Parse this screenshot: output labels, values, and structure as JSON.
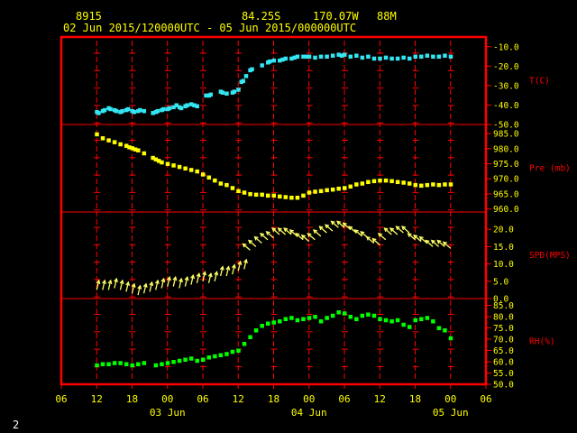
{
  "header": {
    "station": "8915",
    "latitude": "84.25S",
    "longitude": "170.07W",
    "elevation": "88M",
    "time_range": "02 Jun 2015/120000UTC - 05 Jun 2015/000000UTC"
  },
  "footer": {
    "page_number": "2"
  },
  "colors": {
    "frame": "#ff0000",
    "tick_labels": "#ffff00",
    "axis_titles": "#ff0000",
    "temperature": "#33e6f2",
    "pressure": "#ffff00",
    "wind": "#ffff66",
    "humidity": "#00ff00"
  },
  "chart_data": {
    "type": "scatter",
    "x_axis": {
      "unit": "hour (UTC)",
      "range": [
        6,
        78
      ],
      "tick_values": [
        6,
        12,
        18,
        24,
        30,
        36,
        42,
        48,
        54,
        60,
        66,
        72,
        78
      ],
      "tick_labels": [
        "06",
        "12",
        "18",
        "00",
        "06",
        "12",
        "18",
        "00",
        "06",
        "12",
        "18",
        "00",
        "06"
      ],
      "date_labels": [
        {
          "x": 24,
          "label": "03 Jun"
        },
        {
          "x": 48,
          "label": "04 Jun"
        },
        {
          "x": 72,
          "label": "05 Jun"
        }
      ]
    },
    "panels": [
      {
        "id": "temperature",
        "ylabel": "T(C)",
        "ylim": [
          -50,
          -5
        ],
        "tick_values": [
          -10,
          -20,
          -30,
          -40,
          -50
        ],
        "tick_labels": [
          "-10.0",
          "-20.0",
          "-30.0",
          "-40.0",
          "-50.0"
        ],
        "series": [
          {
            "x": [
              12.0,
              12.3,
              13.0,
              13.3,
              14.0,
              14.3,
              15.0,
              15.3,
              16.0,
              16.3,
              17.0,
              17.3,
              18.0,
              18.3,
              19.0,
              19.3,
              20.0,
              21.5,
              22.0,
              22.3,
              23.0,
              23.3,
              24.0,
              24.3,
              25.0,
              25.5,
              26.0,
              26.3,
              27.0,
              27.3,
              28.0,
              28.5,
              29.0,
              30.5,
              31.0,
              31.3,
              33.0,
              33.3,
              34.0,
              35.0,
              35.3,
              36.0,
              36.5,
              36.8,
              37.3,
              38.0,
              38.3,
              40.0,
              41.0,
              41.3,
              42.0,
              43.0,
              43.5,
              44.0,
              45.0,
              45.5,
              46.0,
              47.0,
              47.5,
              48.0,
              49.0,
              50.0,
              51.0,
              52.0,
              53.0,
              53.5,
              54.0,
              55.0,
              56.0,
              57.0,
              58.0,
              59.0,
              60.0,
              61.0,
              62.0,
              63.0,
              64.0,
              65.0,
              66.0,
              67.0,
              68.0,
              69.0,
              70.0,
              71.0,
              72.0
            ],
            "y": [
              -43.5,
              -44.0,
              -43.0,
              -42.5,
              -41.5,
              -42.0,
              -42.5,
              -43.0,
              -43.5,
              -43.0,
              -42.5,
              -42.0,
              -43.0,
              -43.5,
              -43.0,
              -42.5,
              -43.0,
              -44.0,
              -43.5,
              -43.0,
              -42.5,
              -42.0,
              -42.0,
              -41.5,
              -41.0,
              -40.0,
              -41.0,
              -41.5,
              -40.5,
              -40.0,
              -39.5,
              -40.0,
              -40.5,
              -35.0,
              -35.0,
              -34.5,
              -33.0,
              -33.5,
              -34.0,
              -33.5,
              -33.0,
              -32.0,
              -28.0,
              -27.5,
              -25.0,
              -22.0,
              -21.5,
              -19.5,
              -18.0,
              -17.5,
              -17.0,
              -17.0,
              -16.5,
              -16.0,
              -16.0,
              -15.5,
              -15.0,
              -15.0,
              -15.0,
              -15.0,
              -15.5,
              -15.0,
              -15.0,
              -14.5,
              -14.0,
              -14.5,
              -14.0,
              -15.0,
              -14.5,
              -15.5,
              -15.0,
              -16.0,
              -16.0,
              -15.5,
              -16.0,
              -16.0,
              -15.5,
              -16.0,
              -15.0,
              -15.0,
              -14.5,
              -15.0,
              -15.0,
              -14.5,
              -15.0
            ]
          }
        ]
      },
      {
        "id": "pressure",
        "ylabel": "Pre (mb)",
        "ylim": [
          959,
          988
        ],
        "tick_values": [
          985,
          980,
          975,
          970,
          965,
          960
        ],
        "tick_labels": [
          "985.0",
          "980.0",
          "975.0",
          "970.0",
          "965.0",
          "960.0"
        ],
        "series": [
          {
            "x": [
              12.0,
              13.0,
              14.0,
              15.0,
              16.0,
              17.0,
              17.5,
              18.0,
              18.5,
              19.0,
              20.0,
              21.5,
              22.0,
              22.5,
              23.0,
              24.0,
              25.0,
              26.0,
              27.0,
              28.0,
              29.0,
              30.0,
              31.0,
              32.0,
              33.0,
              34.0,
              35.0,
              36.0,
              37.0,
              38.0,
              39.0,
              40.0,
              41.0,
              42.0,
              43.0,
              44.0,
              45.0,
              46.0,
              47.0,
              48.0,
              49.0,
              50.0,
              51.0,
              52.0,
              53.0,
              54.0,
              55.0,
              56.0,
              57.0,
              58.0,
              59.0,
              60.0,
              61.0,
              62.0,
              63.0,
              64.0,
              65.0,
              66.0,
              67.0,
              68.0,
              69.0,
              70.0,
              71.0,
              72.0
            ],
            "y": [
              984.8,
              983.5,
              982.8,
              982.2,
              981.5,
              981.0,
              980.5,
              980.2,
              979.8,
              979.5,
              978.5,
              977.0,
              976.5,
              976.0,
              975.5,
              975.0,
              974.5,
              974.0,
              973.5,
              973.0,
              972.5,
              971.5,
              970.5,
              969.5,
              968.5,
              968.0,
              967.0,
              966.0,
              965.5,
              965.0,
              964.8,
              964.8,
              964.5,
              964.5,
              964.2,
              964.0,
              963.8,
              963.8,
              964.5,
              965.5,
              965.8,
              966.0,
              966.3,
              966.5,
              966.8,
              967.0,
              967.5,
              968.2,
              968.5,
              969.0,
              969.3,
              969.5,
              969.5,
              969.3,
              969.0,
              968.8,
              968.5,
              968.0,
              967.8,
              968.0,
              968.2,
              968.0,
              968.2,
              968.2
            ]
          }
        ]
      },
      {
        "id": "wind",
        "ylabel": "SPD(MPS)",
        "ylim": [
          0,
          25
        ],
        "tick_values": [
          20,
          15,
          10,
          5,
          0
        ],
        "tick_labels": [
          "20.0",
          "15.0",
          "10.0",
          "5.0",
          "0.0"
        ],
        "note": "wind arrows: speed (m/s) plotted at arrow base, arrow direction shows wind direction",
        "series": [
          {
            "x": [
              12.0,
              13.0,
              14.0,
              15.0,
              16.0,
              17.0,
              18.0,
              19.0,
              20.0,
              21.0,
              22.0,
              23.0,
              24.0,
              25.0,
              26.0,
              27.0,
              28.0,
              29.0,
              30.0,
              31.0,
              32.0,
              33.0,
              34.0,
              35.0,
              36.0,
              37.0,
              38.0,
              39.0,
              40.0,
              41.0,
              42.0,
              43.0,
              44.0,
              45.0,
              46.0,
              47.0,
              48.0,
              49.0,
              50.0,
              51.0,
              52.0,
              53.0,
              54.0,
              55.0,
              56.0,
              57.0,
              58.0,
              59.0,
              60.0,
              61.0,
              62.0,
              63.0,
              64.0,
              65.0,
              66.0,
              67.0,
              68.0,
              69.0,
              70.0,
              71.0,
              72.0
            ],
            "y": [
              2.5,
              2.5,
              2.5,
              3.0,
              2.5,
              2.0,
              1.5,
              1.0,
              1.5,
              2.0,
              2.5,
              3.0,
              3.5,
              3.5,
              3.0,
              3.5,
              4.0,
              4.5,
              5.0,
              4.5,
              5.0,
              6.5,
              6.5,
              7.0,
              8.0,
              8.5,
              14.0,
              15.0,
              16.0,
              17.0,
              17.5,
              18.5,
              18.5,
              18.5,
              18.0,
              17.0,
              16.5,
              17.0,
              18.0,
              19.0,
              19.5,
              20.5,
              20.5,
              20.0,
              19.0,
              18.0,
              17.5,
              16.0,
              15.5,
              17.0,
              18.5,
              18.5,
              19.0,
              19.0,
              17.0,
              16.5,
              16.0,
              15.0,
              15.0,
              15.0,
              14.5
            ]
          }
        ]
      },
      {
        "id": "humidity",
        "ylabel": "RH(%)",
        "ylim": [
          50,
          88
        ],
        "tick_values": [
          85,
          80,
          75,
          70,
          65,
          60,
          55,
          50
        ],
        "tick_labels": [
          "85.0",
          "80.0",
          "75.0",
          "70.0",
          "65.0",
          "60.0",
          "55.0",
          "50.0"
        ],
        "series": [
          {
            "x": [
              12.0,
              13.0,
              14.0,
              15.0,
              16.0,
              17.0,
              18.0,
              19.0,
              20.0,
              22.0,
              23.0,
              24.0,
              25.0,
              26.0,
              27.0,
              28.0,
              29.0,
              30.0,
              31.0,
              32.0,
              33.0,
              34.0,
              35.0,
              36.0,
              37.0,
              38.0,
              39.0,
              40.0,
              41.0,
              42.0,
              43.0,
              44.0,
              45.0,
              46.0,
              47.0,
              48.0,
              49.0,
              50.0,
              51.0,
              52.0,
              53.0,
              54.0,
              55.0,
              56.0,
              57.0,
              58.0,
              59.0,
              60.0,
              61.0,
              62.0,
              63.0,
              64.0,
              65.0,
              66.0,
              67.0,
              68.0,
              69.0,
              70.0,
              71.0,
              72.0
            ],
            "y": [
              58.5,
              59.0,
              59.0,
              59.5,
              59.5,
              59.0,
              58.5,
              59.0,
              59.5,
              58.5,
              59.0,
              59.5,
              60.0,
              60.5,
              61.0,
              61.5,
              60.5,
              61.0,
              62.0,
              62.5,
              63.0,
              63.5,
              64.5,
              65.0,
              68.0,
              71.0,
              74.0,
              76.0,
              77.0,
              77.5,
              78.0,
              79.0,
              79.5,
              78.5,
              79.0,
              79.5,
              80.0,
              78.0,
              79.5,
              80.5,
              82.0,
              81.5,
              80.0,
              79.0,
              80.5,
              81.0,
              80.5,
              79.0,
              78.5,
              78.0,
              78.5,
              76.5,
              75.5,
              78.5,
              79.0,
              79.5,
              78.0,
              75.0,
              74.0,
              70.5
            ]
          }
        ]
      }
    ]
  }
}
